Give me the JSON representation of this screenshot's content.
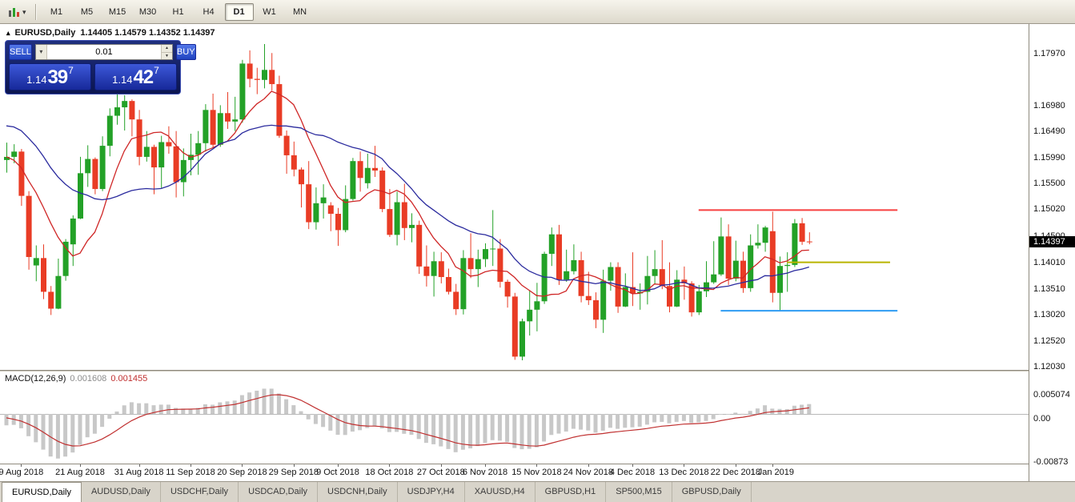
{
  "icons": {
    "panel_toggle": "▴",
    "dropdown_caret": "▾",
    "spinner_up": "▲",
    "spinner_down": "▼",
    "lot_caret": "▾"
  },
  "toolbar": {
    "timeframes": [
      "M1",
      "M5",
      "M15",
      "M30",
      "H1",
      "H4",
      "D1",
      "W1",
      "MN"
    ],
    "active_timeframe": "D1"
  },
  "trade_panel": {
    "sell_label": "SELL",
    "buy_label": "BUY",
    "lot_value": "0.01",
    "sell_price": {
      "prefix": "1.14",
      "big": "39",
      "sup": "7"
    },
    "buy_price": {
      "prefix": "1.14",
      "big": "42",
      "sup": "7"
    }
  },
  "tabs": {
    "items": [
      "EURUSD,Daily",
      "AUDUSD,Daily",
      "USDCHF,Daily",
      "USDCAD,Daily",
      "USDCNH,Daily",
      "USDJPY,H4",
      "XAUUSD,H4",
      "GBPUSD,H1",
      "SP500,M15",
      "GBPUSD,Daily"
    ],
    "active": "EURUSD,Daily"
  },
  "chart_data": {
    "type": "candlestick",
    "title": {
      "symbol": "EURUSD,Daily",
      "open": 1.14405,
      "high": 1.14579,
      "low": 1.14352,
      "close": 1.14397,
      "ohlc_text": "1.14405 1.14579 1.14352 1.14397"
    },
    "price_axis": {
      "labels": [
        "1.17970",
        "1.16980",
        "1.16490",
        "1.15990",
        "1.15500",
        "1.15020",
        "1.14500",
        "1.14010",
        "1.13510",
        "1.13020",
        "1.12520",
        "1.12030"
      ],
      "current": "1.14397"
    },
    "time_labels": [
      {
        "index": 2,
        "text": "9 Aug 2018"
      },
      {
        "index": 10,
        "text": "21 Aug 2018"
      },
      {
        "index": 18,
        "text": "31 Aug 2018"
      },
      {
        "index": 25,
        "text": "11 Sep 2018"
      },
      {
        "index": 32,
        "text": "20 Sep 2018"
      },
      {
        "index": 39,
        "text": "29 Sep 2018"
      },
      {
        "index": 45,
        "text": "9 Oct 2018"
      },
      {
        "index": 52,
        "text": "18 Oct 2018"
      },
      {
        "index": 59,
        "text": "27 Oct 2018"
      },
      {
        "index": 65,
        "text": "6 Nov 2018"
      },
      {
        "index": 72,
        "text": "15 Nov 2018"
      },
      {
        "index": 79,
        "text": "24 Nov 2018"
      },
      {
        "index": 85,
        "text": "4 Dec 2018"
      },
      {
        "index": 92,
        "text": "13 Dec 2018"
      },
      {
        "index": 99,
        "text": "22 Dec 2018"
      },
      {
        "index": 104,
        "text": "1 Jan 2019"
      }
    ],
    "candle_colors": {
      "bull": "#23a127",
      "bear": "#e93c25"
    },
    "overlays": {
      "ma_fast": {
        "period": 8,
        "color": "#cf2626"
      },
      "ma_slow": {
        "period": 20,
        "color": "#2b2b9e"
      },
      "hlines": [
        {
          "name": "resistance-line",
          "price": 1.15,
          "color": "#f84040",
          "width": 2,
          "from": 94,
          "to": 121
        },
        {
          "name": "yellow-level-line",
          "price": 1.1401,
          "color": "#b9b400",
          "width": 2,
          "from": 106,
          "to": 120
        },
        {
          "name": "support-line",
          "price": 1.1309,
          "color": "#2f9cf2",
          "width": 2,
          "from": 97,
          "to": 121
        }
      ]
    },
    "macd": {
      "label": "MACD(12,26,9)",
      "value_main": "0.001608",
      "value_signal": "0.001455",
      "fast": 12,
      "slow": 26,
      "signal": 9,
      "axis_labels": [
        "0.005074",
        "0.00",
        "-0.00873"
      ],
      "histogram_color": "#c8c8c8",
      "signal_color": "#c03030"
    },
    "warmup_closes": [
      1.163,
      1.1648,
      1.1662,
      1.1655,
      1.164,
      1.1621,
      1.1635,
      1.165,
      1.1668,
      1.1692,
      1.1712,
      1.1728,
      1.1744,
      1.173,
      1.1716,
      1.17,
      1.169,
      1.1684,
      1.1672,
      1.1661,
      1.164,
      1.161,
      1.1586,
      1.1567,
      1.1554,
      1.159
    ],
    "ohlc": [
      [
        1.1595,
        1.1628,
        1.1571,
        1.1601
      ],
      [
        1.1601,
        1.1625,
        1.1589,
        1.1611
      ],
      [
        1.1611,
        1.1616,
        1.1508,
        1.1527
      ],
      [
        1.1527,
        1.1536,
        1.1387,
        1.1411
      ],
      [
        1.1395,
        1.1433,
        1.1365,
        1.1409
      ],
      [
        1.1409,
        1.1435,
        1.1331,
        1.1345
      ],
      [
        1.1345,
        1.1356,
        1.1301,
        1.1313
      ],
      [
        1.1313,
        1.1408,
        1.1312,
        1.1375
      ],
      [
        1.1375,
        1.1445,
        1.1366,
        1.144
      ],
      [
        1.1435,
        1.149,
        1.1394,
        1.1484
      ],
      [
        1.1484,
        1.1601,
        1.1483,
        1.157
      ],
      [
        1.157,
        1.1623,
        1.1544,
        1.1597
      ],
      [
        1.1597,
        1.16,
        1.153,
        1.154
      ],
      [
        1.154,
        1.164,
        1.1536,
        1.1622
      ],
      [
        1.1622,
        1.1693,
        1.1602,
        1.1679
      ],
      [
        1.1679,
        1.1734,
        1.1662,
        1.1695
      ],
      [
        1.1695,
        1.1718,
        1.1651,
        1.1707
      ],
      [
        1.1707,
        1.171,
        1.164,
        1.1672
      ],
      [
        1.1672,
        1.169,
        1.1585,
        1.1601
      ],
      [
        1.1601,
        1.165,
        1.1592,
        1.162
      ],
      [
        1.162,
        1.1624,
        1.153,
        1.1581
      ],
      [
        1.1581,
        1.1641,
        1.1542,
        1.1629
      ],
      [
        1.1629,
        1.1659,
        1.1607,
        1.1621
      ],
      [
        1.1621,
        1.165,
        1.1524,
        1.1553
      ],
      [
        1.1553,
        1.1617,
        1.1526,
        1.1595
      ],
      [
        1.1595,
        1.1645,
        1.1566,
        1.1605
      ],
      [
        1.1605,
        1.165,
        1.1567,
        1.1627
      ],
      [
        1.1627,
        1.1701,
        1.1611,
        1.169
      ],
      [
        1.169,
        1.1721,
        1.1619,
        1.1624
      ],
      [
        1.1624,
        1.1699,
        1.162,
        1.1684
      ],
      [
        1.1684,
        1.1724,
        1.1654,
        1.1668
      ],
      [
        1.1668,
        1.1715,
        1.165,
        1.1672
      ],
      [
        1.1672,
        1.1785,
        1.1666,
        1.1778
      ],
      [
        1.1778,
        1.1803,
        1.1733,
        1.1749
      ],
      [
        1.1749,
        1.177,
        1.172,
        1.1747
      ],
      [
        1.1747,
        1.1815,
        1.1731,
        1.1766
      ],
      [
        1.1766,
        1.1798,
        1.1727,
        1.1739
      ],
      [
        1.1739,
        1.1755,
        1.1637,
        1.1641
      ],
      [
        1.1641,
        1.1651,
        1.1569,
        1.1604
      ],
      [
        1.1604,
        1.163,
        1.1564,
        1.1577
      ],
      [
        1.1577,
        1.1581,
        1.1505,
        1.1549
      ],
      [
        1.1549,
        1.1593,
        1.1464,
        1.1477
      ],
      [
        1.1477,
        1.1543,
        1.1463,
        1.1513
      ],
      [
        1.1513,
        1.1549,
        1.1484,
        1.1524
      ],
      [
        1.1509,
        1.1515,
        1.146,
        1.1493
      ],
      [
        1.1493,
        1.1504,
        1.1432,
        1.1462
      ],
      [
        1.1462,
        1.1547,
        1.1458,
        1.1521
      ],
      [
        1.1521,
        1.1599,
        1.1518,
        1.1593
      ],
      [
        1.1593,
        1.1611,
        1.1535,
        1.1561
      ],
      [
        1.1551,
        1.1607,
        1.1541,
        1.158
      ],
      [
        1.158,
        1.1622,
        1.1563,
        1.1575
      ],
      [
        1.1575,
        1.1581,
        1.1496,
        1.1502
      ],
      [
        1.1502,
        1.154,
        1.1449,
        1.1453
      ],
      [
        1.1453,
        1.1535,
        1.1433,
        1.1515
      ],
      [
        1.1515,
        1.155,
        1.1443,
        1.1466
      ],
      [
        1.1466,
        1.1494,
        1.1439,
        1.1472
      ],
      [
        1.1472,
        1.148,
        1.1379,
        1.1393
      ],
      [
        1.1393,
        1.1433,
        1.1355,
        1.1375
      ],
      [
        1.1375,
        1.1421,
        1.1336,
        1.1403
      ],
      [
        1.1403,
        1.142,
        1.1361,
        1.1373
      ],
      [
        1.1373,
        1.1389,
        1.134,
        1.1345
      ],
      [
        1.1345,
        1.136,
        1.1301,
        1.1312
      ],
      [
        1.1312,
        1.1424,
        1.1302,
        1.1409
      ],
      [
        1.1409,
        1.1456,
        1.1371,
        1.1388
      ],
      [
        1.1388,
        1.1425,
        1.1354,
        1.1407
      ],
      [
        1.1407,
        1.1437,
        1.1392,
        1.1426
      ],
      [
        1.1426,
        1.15,
        1.1394,
        1.1427
      ],
      [
        1.1427,
        1.1445,
        1.1353,
        1.1364
      ],
      [
        1.1364,
        1.1368,
        1.1315,
        1.1336
      ],
      [
        1.1336,
        1.1343,
        1.1216,
        1.1222
      ],
      [
        1.1222,
        1.1294,
        1.1215,
        1.1289
      ],
      [
        1.1289,
        1.1348,
        1.1262,
        1.1311
      ],
      [
        1.1311,
        1.1362,
        1.127,
        1.1327
      ],
      [
        1.1327,
        1.1421,
        1.1322,
        1.1417
      ],
      [
        1.1417,
        1.1467,
        1.1394,
        1.1454
      ],
      [
        1.1454,
        1.1472,
        1.1358,
        1.1368
      ],
      [
        1.1368,
        1.1425,
        1.1364,
        1.1384
      ],
      [
        1.1384,
        1.1435,
        1.1378,
        1.1405
      ],
      [
        1.1405,
        1.1421,
        1.1325,
        1.1337
      ],
      [
        1.1337,
        1.1383,
        1.132,
        1.1329
      ],
      [
        1.1329,
        1.1344,
        1.1276,
        1.1292
      ],
      [
        1.1292,
        1.1387,
        1.1267,
        1.1366
      ],
      [
        1.1366,
        1.1401,
        1.1347,
        1.1392
      ],
      [
        1.1392,
        1.1401,
        1.1305,
        1.1317
      ],
      [
        1.1317,
        1.138,
        1.1316,
        1.1354
      ],
      [
        1.1354,
        1.142,
        1.1318,
        1.1342
      ],
      [
        1.1342,
        1.1361,
        1.1311,
        1.1345
      ],
      [
        1.1345,
        1.1413,
        1.1321,
        1.1375
      ],
      [
        1.1375,
        1.1424,
        1.136,
        1.1388
      ],
      [
        1.1388,
        1.1443,
        1.135,
        1.1356
      ],
      [
        1.1356,
        1.1401,
        1.1306,
        1.1317
      ],
      [
        1.1317,
        1.1386,
        1.1316,
        1.1368
      ],
      [
        1.1368,
        1.1393,
        1.133,
        1.1361
      ],
      [
        1.1361,
        1.1365,
        1.1298,
        1.1306
      ],
      [
        1.1306,
        1.1358,
        1.1301,
        1.1346
      ],
      [
        1.1346,
        1.1403,
        1.1335,
        1.1363
      ],
      [
        1.1363,
        1.1441,
        1.136,
        1.1378
      ],
      [
        1.1378,
        1.1486,
        1.1375,
        1.145
      ],
      [
        1.145,
        1.1473,
        1.1358,
        1.137
      ],
      [
        1.137,
        1.1442,
        1.1365,
        1.1404
      ],
      [
        1.1404,
        1.1421,
        1.1343,
        1.1352
      ],
      [
        1.1352,
        1.1454,
        1.1345,
        1.1433
      ],
      [
        1.1433,
        1.1473,
        1.1427,
        1.1438
      ],
      [
        1.1438,
        1.147,
        1.1421,
        1.1467
      ],
      [
        1.146,
        1.1497,
        1.1325,
        1.1343
      ],
      [
        1.1343,
        1.1412,
        1.1309,
        1.1394
      ],
      [
        1.1394,
        1.142,
        1.1345,
        1.1396
      ],
      [
        1.1396,
        1.1483,
        1.1392,
        1.1475
      ],
      [
        1.1475,
        1.1485,
        1.1434,
        1.144
      ],
      [
        1.14405,
        1.14579,
        1.14352,
        1.14397
      ]
    ]
  }
}
